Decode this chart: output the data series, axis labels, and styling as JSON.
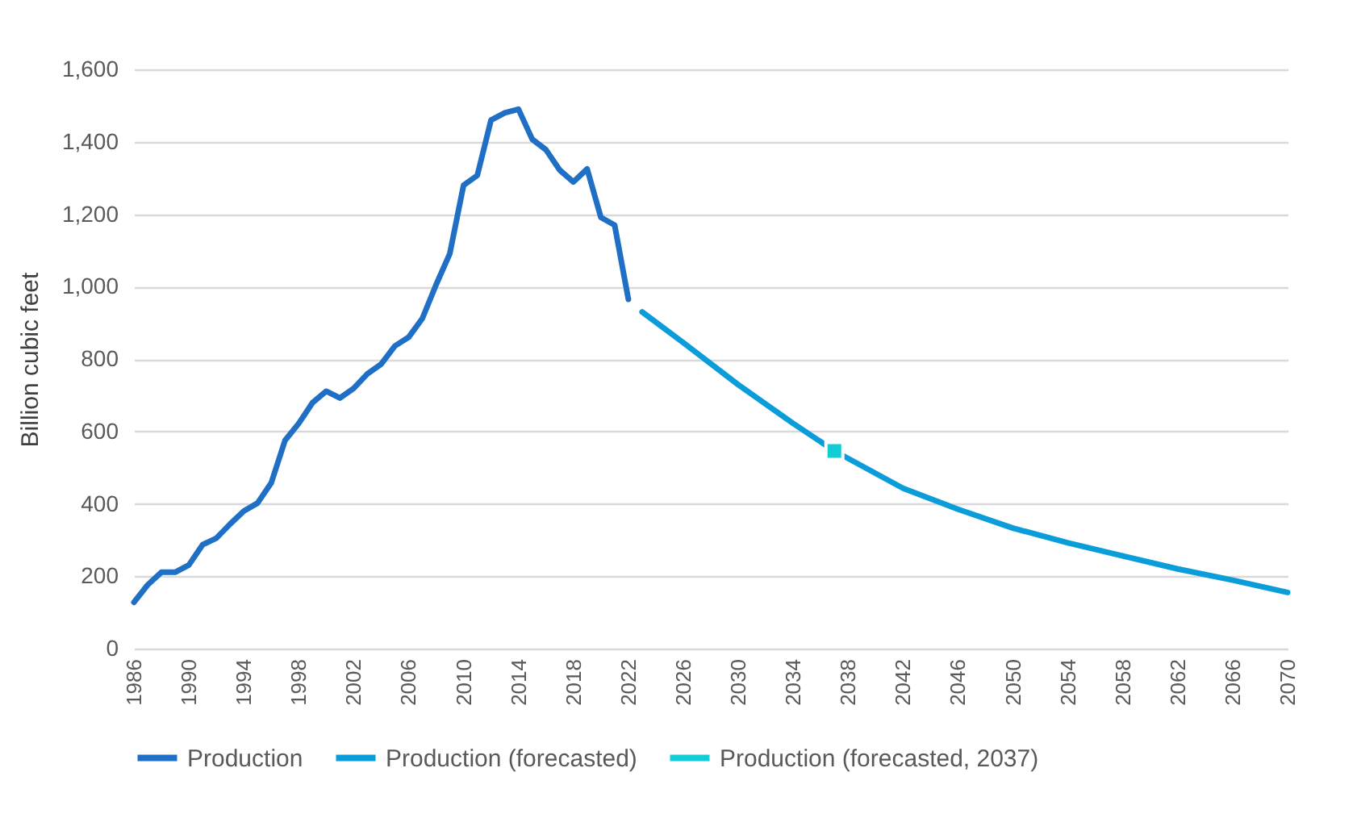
{
  "chart_data": {
    "type": "line",
    "ylabel": "Billion cubic feet",
    "xlim": [
      1986,
      2070
    ],
    "xticks": [
      1986,
      1990,
      1994,
      1998,
      2002,
      2006,
      2010,
      2014,
      2018,
      2022,
      2026,
      2030,
      2034,
      2038,
      2042,
      2046,
      2050,
      2054,
      2058,
      2062,
      2066,
      2070
    ],
    "ylim": [
      0,
      1600
    ],
    "yticks": [
      0,
      200,
      400,
      600,
      800,
      {
        "value": 1000,
        "label": "1,000"
      },
      {
        "value": 1200,
        "label": "1,200"
      },
      {
        "value": 1400,
        "label": "1,400"
      },
      {
        "value": 1600,
        "label": "1,600"
      }
    ],
    "grid": "y",
    "legend": "bottom",
    "marker": "none",
    "line_style": "solid",
    "series": [
      {
        "name": "Production",
        "color": "#1f6fc5",
        "x": [
          1986,
          1987,
          1988,
          1989,
          1990,
          1991,
          1992,
          1993,
          1994,
          1995,
          1996,
          1997,
          1998,
          1999,
          2000,
          2001,
          2002,
          2003,
          2004,
          2005,
          2006,
          2007,
          2008,
          2009,
          2010,
          2011,
          2012,
          2013,
          2014,
          2015,
          2016,
          2017,
          2018,
          2019,
          2020,
          2021,
          2022
        ],
        "values": [
          128,
          176,
          211,
          211,
          231,
          287,
          305,
          344,
          380,
          402,
          458,
          575,
          622,
          679,
          711,
          692,
          719,
          759,
          786,
          836,
          860,
          912,
          1005,
          1091,
          1280,
          1307,
          1460,
          1480,
          1490,
          1407,
          1378,
          1322,
          1289,
          1325,
          1191,
          1170,
          965
        ]
      },
      {
        "name": "Production (forecasted)",
        "color": "#0b9dd9",
        "x": [
          2023,
          2026,
          2030,
          2034,
          2037,
          2042,
          2046,
          2050,
          2054,
          2058,
          2062,
          2066,
          2070
        ],
        "values": [
          930,
          845,
          729,
          622,
          546,
          443,
          385,
          333,
          292,
          256,
          220,
          189,
          155
        ]
      },
      {
        "name": "Production (forecasted, 2037)",
        "color": "#12cdd4",
        "type": "scatter",
        "marker": "square",
        "x": [
          2037
        ],
        "values": [
          546
        ]
      }
    ]
  }
}
